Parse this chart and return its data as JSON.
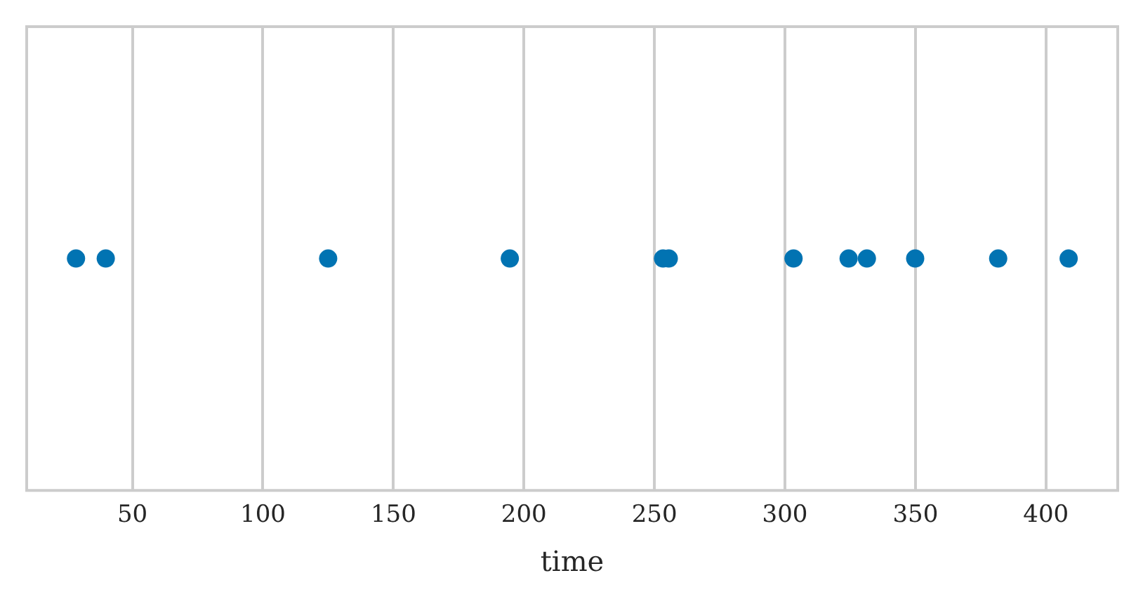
{
  "chart_data": {
    "type": "scatter",
    "orientation": "horizontal",
    "xlabel": "time",
    "grid": "x",
    "marker": "circle",
    "legend": false,
    "xlim": [
      9.5,
      427.5
    ],
    "xticks": [
      50,
      100,
      150,
      200,
      250,
      300,
      350,
      400
    ],
    "categories": [
      null
    ],
    "series": [
      {
        "color": "#0173b2",
        "values": [
          28.4
        ]
      },
      {
        "color": "#0173b2",
        "values": [
          39.8
        ]
      },
      {
        "color": "#0173b2",
        "values": [
          125
        ]
      },
      {
        "color": "#0173b2",
        "values": [
          194.6
        ]
      },
      {
        "color": "#0173b2",
        "values": [
          253.3
        ]
      },
      {
        "color": "#0173b2",
        "values": [
          255.5
        ]
      },
      {
        "color": "#0173b2",
        "values": [
          303.3
        ]
      },
      {
        "color": "#0173b2",
        "values": [
          324.4
        ]
      },
      {
        "color": "#0173b2",
        "values": [
          331.4
        ]
      },
      {
        "color": "#0173b2",
        "values": [
          349.9
        ]
      },
      {
        "color": "#0173b2",
        "values": [
          381.7
        ]
      },
      {
        "color": "#0173b2",
        "values": [
          408.7
        ]
      }
    ]
  }
}
